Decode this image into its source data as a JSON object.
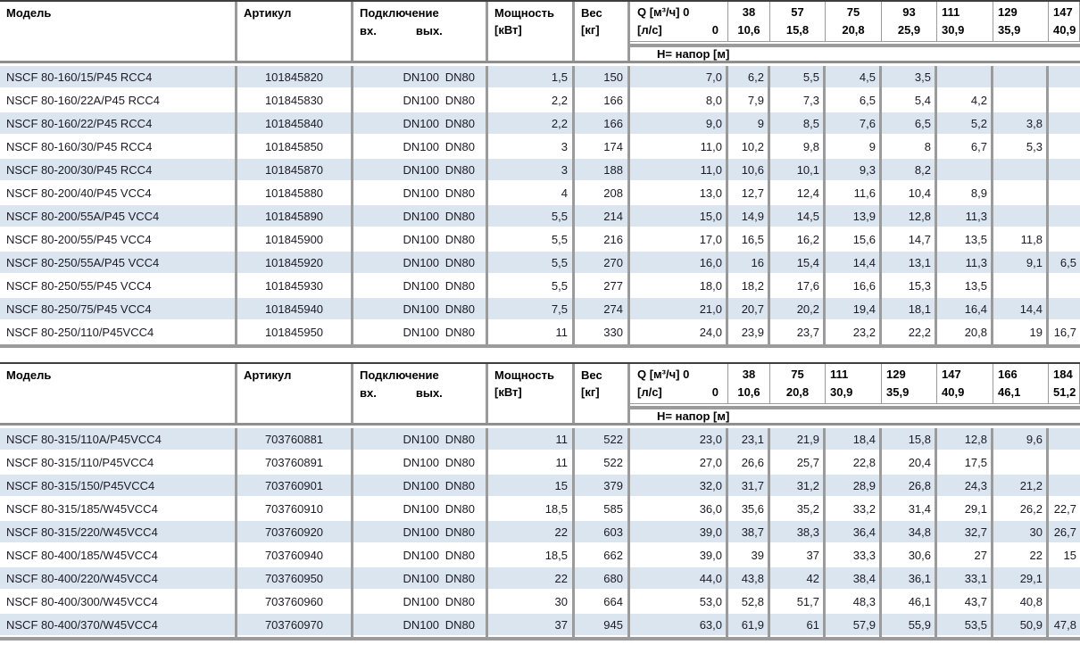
{
  "colors": {
    "stripe": "#dbe5ef",
    "grid": "#9b9b9b",
    "top_line": "#3f3f3f",
    "text": "#1b1b26"
  },
  "tables": [
    {
      "header": {
        "model": "Модель",
        "article": "Артикул",
        "connection": "Подключение",
        "inlet": "вх.",
        "outlet": "вых.",
        "power_line1": "Мощность",
        "power_line2": "[кВт]",
        "weight_line1": "Вес",
        "weight_line2": "[кг]",
        "q_label_line1": "Q [м³/ч] 0",
        "q_label_line2": "[л/с]",
        "q_label_zero": "0",
        "head_row_label": "Н= напор [м]"
      },
      "flow_columns": [
        {
          "m3h": "38",
          "ls": "10,6"
        },
        {
          "m3h": "57",
          "ls": "15,8"
        },
        {
          "m3h": "75",
          "ls": "20,8"
        },
        {
          "m3h": "93",
          "ls": "25,9"
        },
        {
          "m3h": "111",
          "ls": "30,9"
        },
        {
          "m3h": "129",
          "ls": "35,9"
        },
        {
          "m3h": "147",
          "ls": "40,9"
        }
      ],
      "rows": [
        {
          "model": "NSCF 80-160/15/P45 RCC4",
          "article": "101845820",
          "inlet": "DN100",
          "outlet": "DN80",
          "power": "1,5",
          "weight": "150",
          "head": [
            "7,0",
            "6,2",
            "5,5",
            "4,5",
            "3,5",
            "",
            "",
            ""
          ]
        },
        {
          "model": "NSCF 80-160/22A/P45 RCC4",
          "article": "101845830",
          "inlet": "DN100",
          "outlet": "DN80",
          "power": "2,2",
          "weight": "166",
          "head": [
            "8,0",
            "7,9",
            "7,3",
            "6,5",
            "5,4",
            "4,2",
            "",
            ""
          ]
        },
        {
          "model": "NSCF 80-160/22/P45 RCC4",
          "article": "101845840",
          "inlet": "DN100",
          "outlet": "DN80",
          "power": "2,2",
          "weight": "166",
          "head": [
            "9,0",
            "9",
            "8,5",
            "7,6",
            "6,5",
            "5,2",
            "3,8",
            ""
          ]
        },
        {
          "model": "NSCF 80-160/30/P45 RCC4",
          "article": "101845850",
          "inlet": "DN100",
          "outlet": "DN80",
          "power": "3",
          "weight": "174",
          "head": [
            "11,0",
            "10,2",
            "9,8",
            "9",
            "8",
            "6,7",
            "5,3",
            ""
          ]
        },
        {
          "model": "NSCF 80-200/30/P45 RCC4",
          "article": "101845870",
          "inlet": "DN100",
          "outlet": "DN80",
          "power": "3",
          "weight": "188",
          "head": [
            "11,0",
            "10,6",
            "10,1",
            "9,3",
            "8,2",
            "",
            "",
            ""
          ]
        },
        {
          "model": "NSCF 80-200/40/P45 VCC4",
          "article": "101845880",
          "inlet": "DN100",
          "outlet": "DN80",
          "power": "4",
          "weight": "208",
          "head": [
            "13,0",
            "12,7",
            "12,4",
            "11,6",
            "10,4",
            "8,9",
            "",
            ""
          ]
        },
        {
          "model": "NSCF 80-200/55A/P45 VCC4",
          "article": "101845890",
          "inlet": "DN100",
          "outlet": "DN80",
          "power": "5,5",
          "weight": "214",
          "head": [
            "15,0",
            "14,9",
            "14,5",
            "13,9",
            "12,8",
            "11,3",
            "",
            ""
          ]
        },
        {
          "model": "NSCF 80-200/55/P45 VCC4",
          "article": "101845900",
          "inlet": "DN100",
          "outlet": "DN80",
          "power": "5,5",
          "weight": "216",
          "head": [
            "17,0",
            "16,5",
            "16,2",
            "15,6",
            "14,7",
            "13,5",
            "11,8",
            ""
          ]
        },
        {
          "model": "NSCF 80-250/55A/P45 VCC4",
          "article": "101845920",
          "inlet": "DN100",
          "outlet": "DN80",
          "power": "5,5",
          "weight": "270",
          "head": [
            "16,0",
            "16",
            "15,4",
            "14,4",
            "13,1",
            "11,3",
            "9,1",
            "6,5"
          ]
        },
        {
          "model": "NSCF 80-250/55/P45 VCC4",
          "article": "101845930",
          "inlet": "DN100",
          "outlet": "DN80",
          "power": "5,5",
          "weight": "277",
          "head": [
            "18,0",
            "18,2",
            "17,6",
            "16,6",
            "15,3",
            "13,5",
            "",
            ""
          ]
        },
        {
          "model": "NSCF 80-250/75/P45 VCC4",
          "article": "101845940",
          "inlet": "DN100",
          "outlet": "DN80",
          "power": "7,5",
          "weight": "274",
          "head": [
            "21,0",
            "20,7",
            "20,2",
            "19,4",
            "18,1",
            "16,4",
            "14,4",
            ""
          ]
        },
        {
          "model": "NSCF 80-250/110/P45VCC4",
          "article": "101845950",
          "inlet": "DN100",
          "outlet": "DN80",
          "power": "11",
          "weight": "330",
          "head": [
            "24,0",
            "23,9",
            "23,7",
            "23,2",
            "22,2",
            "20,8",
            "19",
            "16,7"
          ]
        }
      ]
    },
    {
      "header": {
        "model": "Модель",
        "article": "Артикул",
        "connection": "Подключение",
        "inlet": "вх.",
        "outlet": "вых.",
        "power_line1": "Мощность",
        "power_line2": "[кВт]",
        "weight_line1": "Вес",
        "weight_line2": "[кг]",
        "q_label_line1": "Q [м³/ч] 0",
        "q_label_line2": "[л/с]",
        "q_label_zero": "0",
        "head_row_label": "Н= напор [м]"
      },
      "flow_columns": [
        {
          "m3h": "38",
          "ls": "10,6"
        },
        {
          "m3h": "75",
          "ls": "20,8"
        },
        {
          "m3h": "111",
          "ls": "30,9"
        },
        {
          "m3h": "129",
          "ls": "35,9"
        },
        {
          "m3h": "147",
          "ls": "40,9"
        },
        {
          "m3h": "166",
          "ls": "46,1"
        },
        {
          "m3h": "184",
          "ls": "51,2"
        }
      ],
      "rows": [
        {
          "model": "NSCF 80-315/110A/P45VCC4",
          "article": "703760881",
          "inlet": "DN100",
          "outlet": "DN80",
          "power": "11",
          "weight": "522",
          "head": [
            "23,0",
            "23,1",
            "21,9",
            "18,4",
            "15,8",
            "12,8",
            "9,6",
            ""
          ]
        },
        {
          "model": "NSCF 80-315/110/P45VCC4",
          "article": "703760891",
          "inlet": "DN100",
          "outlet": "DN80",
          "power": "11",
          "weight": "522",
          "head": [
            "27,0",
            "26,6",
            "25,7",
            "22,8",
            "20,4",
            "17,5",
            "",
            ""
          ]
        },
        {
          "model": "NSCF 80-315/150/P45VCC4",
          "article": "703760901",
          "inlet": "DN100",
          "outlet": "DN80",
          "power": "15",
          "weight": "379",
          "head": [
            "32,0",
            "31,7",
            "31,2",
            "28,9",
            "26,8",
            "24,3",
            "21,2",
            ""
          ]
        },
        {
          "model": "NSCF 80-315/185/W45VCC4",
          "article": "703760910",
          "inlet": "DN100",
          "outlet": "DN80",
          "power": "18,5",
          "weight": "585",
          "head": [
            "36,0",
            "35,6",
            "35,2",
            "33,2",
            "31,4",
            "29,1",
            "26,2",
            "22,7"
          ]
        },
        {
          "model": "NSCF 80-315/220/W45VCC4",
          "article": "703760920",
          "inlet": "DN100",
          "outlet": "DN80",
          "power": "22",
          "weight": "603",
          "head": [
            "39,0",
            "38,7",
            "38,3",
            "36,4",
            "34,8",
            "32,7",
            "30",
            "26,7"
          ]
        },
        {
          "model": "NSCF 80-400/185/W45VCC4",
          "article": "703760940",
          "inlet": "DN100",
          "outlet": "DN80",
          "power": "18,5",
          "weight": "662",
          "head": [
            "39,0",
            "39",
            "37",
            "33,3",
            "30,6",
            "27",
            "22",
            "15"
          ]
        },
        {
          "model": "NSCF 80-400/220/W45VCC4",
          "article": "703760950",
          "inlet": "DN100",
          "outlet": "DN80",
          "power": "22",
          "weight": "680",
          "head": [
            "44,0",
            "43,8",
            "42",
            "38,4",
            "36,1",
            "33,1",
            "29,1",
            ""
          ]
        },
        {
          "model": "NSCF 80-400/300/W45VCC4",
          "article": "703760960",
          "inlet": "DN100",
          "outlet": "DN80",
          "power": "30",
          "weight": "664",
          "head": [
            "53,0",
            "52,8",
            "51,7",
            "48,3",
            "46,1",
            "43,7",
            "40,8",
            ""
          ]
        },
        {
          "model": "NSCF 80-400/370/W45VCC4",
          "article": "703760970",
          "inlet": "DN100",
          "outlet": "DN80",
          "power": "37",
          "weight": "945",
          "head": [
            "63,0",
            "61,9",
            "61",
            "57,9",
            "55,9",
            "53,5",
            "50,9",
            "47,8"
          ]
        }
      ]
    }
  ]
}
